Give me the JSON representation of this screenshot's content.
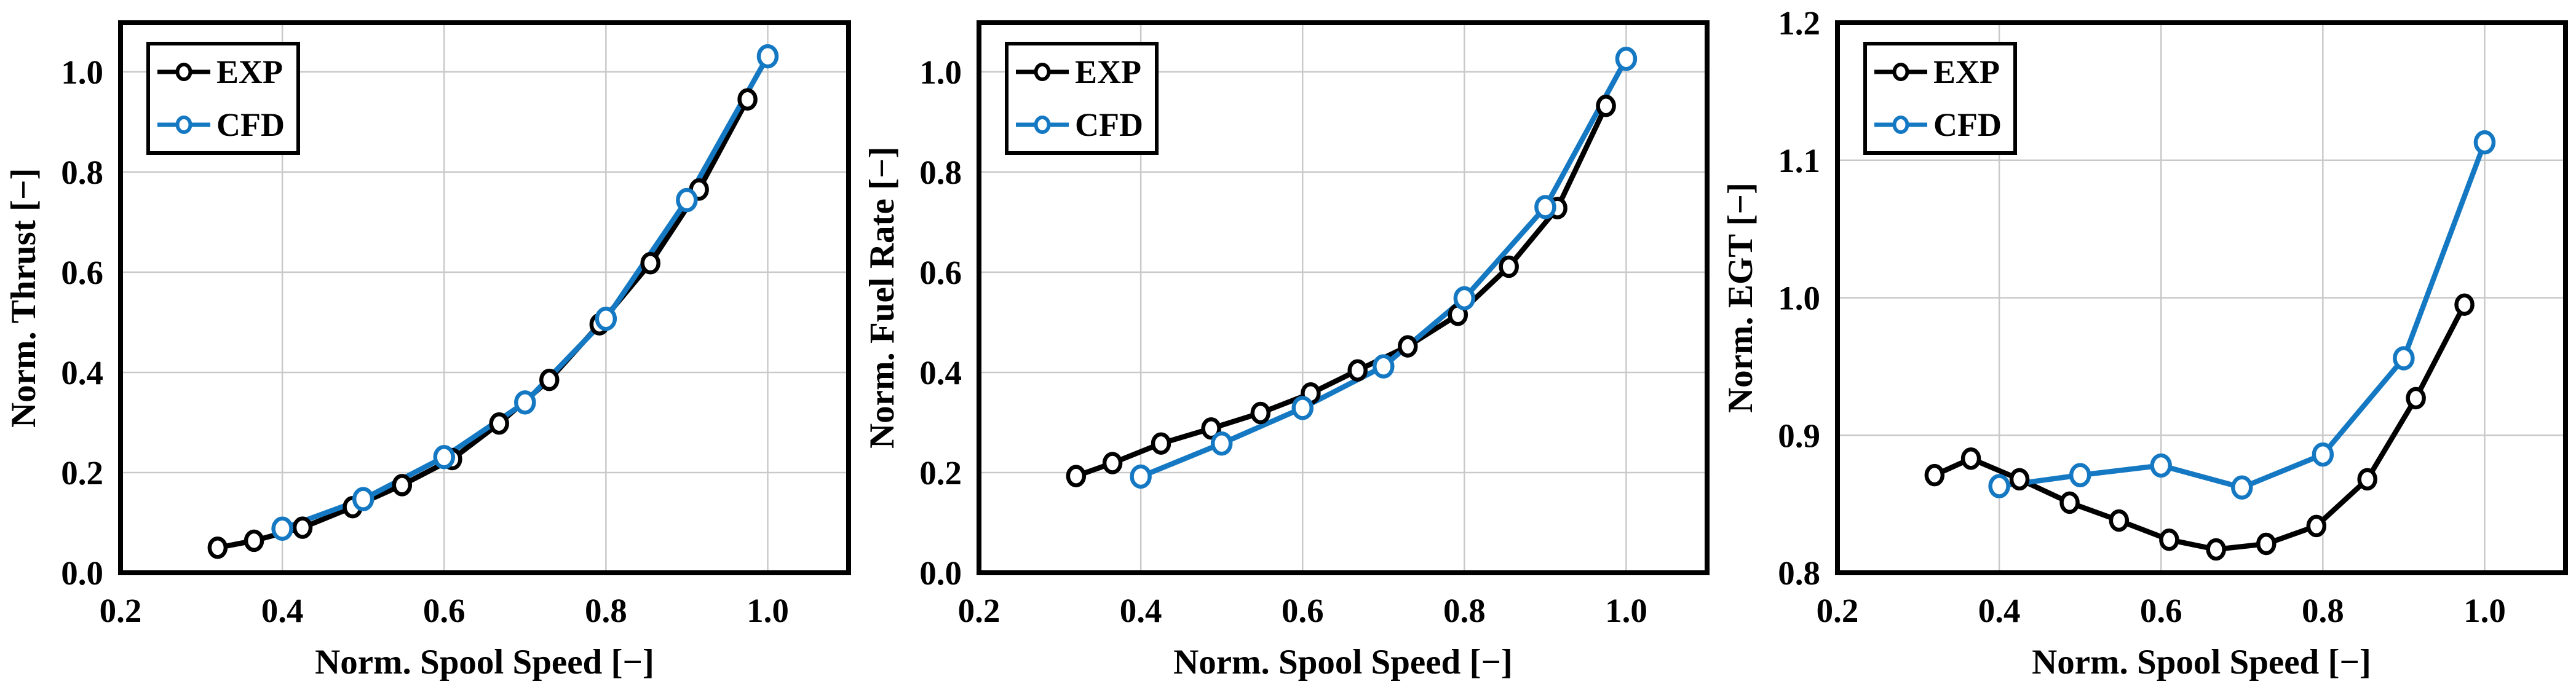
{
  "colors": {
    "exp_black": "#000000",
    "cfd_blue": "#1478c3",
    "gridline": "#c9c9c9",
    "plot_border": "#000000",
    "background": "#ffffff",
    "tick_text": "#000000"
  },
  "chart_data": [
    {
      "type": "line",
      "title": "",
      "xlabel": "Norm. Spool Speed [−]",
      "ylabel": "Norm. Thrust [−]",
      "xlim": [
        0.2,
        1.1
      ],
      "ylim": [
        0.0,
        1.098
      ],
      "grid": true,
      "xtick_labels": [
        "0.2",
        "0.4",
        "0.6",
        "0.8",
        "1.0"
      ],
      "xtick_values": [
        0.2,
        0.4,
        0.6,
        0.8,
        1.0
      ],
      "ytick_labels": [
        "0.0",
        "0.2",
        "0.4",
        "0.6",
        "0.8",
        "1.0"
      ],
      "ytick_values": [
        0.0,
        0.2,
        0.4,
        0.6,
        0.8,
        1.0
      ],
      "legend": {
        "position": "top-left",
        "entries": [
          "EXP",
          "CFD"
        ]
      },
      "series": [
        {
          "name": "EXP",
          "color": "#000000",
          "marker": "open-circle",
          "x": [
            0.32,
            0.365,
            0.425,
            0.487,
            0.548,
            0.61,
            0.668,
            0.73,
            0.792,
            0.855,
            0.915,
            0.975
          ],
          "y": [
            0.05,
            0.064,
            0.09,
            0.131,
            0.175,
            0.227,
            0.298,
            0.385,
            0.496,
            0.618,
            0.765,
            0.945
          ]
        },
        {
          "name": "CFD",
          "color": "#1478c3",
          "marker": "open-circle",
          "x": [
            0.4,
            0.5,
            0.6,
            0.7,
            0.8,
            0.9,
            1.0
          ],
          "y": [
            0.088,
            0.147,
            0.231,
            0.34,
            0.507,
            0.744,
            1.031
          ]
        }
      ]
    },
    {
      "type": "line",
      "title": "",
      "xlabel": "Norm. Spool Speed [−]",
      "ylabel": "Norm. Fuel Rate [−]",
      "xlim": [
        0.2,
        1.1
      ],
      "ylim": [
        0.0,
        1.098
      ],
      "grid": true,
      "xtick_labels": [
        "0.2",
        "0.4",
        "0.6",
        "0.8",
        "1.0"
      ],
      "xtick_values": [
        0.2,
        0.4,
        0.6,
        0.8,
        1.0
      ],
      "ytick_labels": [
        "0.0",
        "0.2",
        "0.4",
        "0.6",
        "0.8",
        "1.0"
      ],
      "ytick_values": [
        0.0,
        0.2,
        0.4,
        0.6,
        0.8,
        1.0
      ],
      "legend": {
        "position": "top-left",
        "entries": [
          "EXP",
          "CFD"
        ]
      },
      "series": [
        {
          "name": "EXP",
          "color": "#000000",
          "marker": "open-circle",
          "x": [
            0.32,
            0.365,
            0.425,
            0.487,
            0.548,
            0.61,
            0.668,
            0.73,
            0.792,
            0.855,
            0.915,
            0.975
          ],
          "y": [
            0.193,
            0.219,
            0.258,
            0.288,
            0.319,
            0.358,
            0.404,
            0.452,
            0.515,
            0.611,
            0.728,
            0.932
          ]
        },
        {
          "name": "CFD",
          "color": "#1478c3",
          "marker": "open-circle",
          "x": [
            0.4,
            0.5,
            0.6,
            0.7,
            0.8,
            0.9,
            1.0
          ],
          "y": [
            0.192,
            0.258,
            0.329,
            0.412,
            0.548,
            0.73,
            1.026
          ]
        }
      ]
    },
    {
      "type": "line",
      "title": "",
      "xlabel": "Norm. Spool Speed [−]",
      "ylabel": "Norm. EGT [−]",
      "xlim": [
        0.2,
        1.1
      ],
      "ylim": [
        0.8,
        1.2
      ],
      "grid": true,
      "xtick_labels": [
        "0.2",
        "0.4",
        "0.6",
        "0.8",
        "1.0"
      ],
      "xtick_values": [
        0.2,
        0.4,
        0.6,
        0.8,
        1.0
      ],
      "ytick_labels": [
        "0.8",
        "0.9",
        "1.0",
        "1.1",
        "1.2"
      ],
      "ytick_values": [
        0.8,
        0.9,
        1.0,
        1.1,
        1.2
      ],
      "legend": {
        "position": "top-left",
        "entries": [
          "EXP",
          "CFD"
        ]
      },
      "series": [
        {
          "name": "EXP",
          "color": "#000000",
          "marker": "open-circle",
          "x": [
            0.32,
            0.365,
            0.425,
            0.487,
            0.548,
            0.61,
            0.668,
            0.73,
            0.792,
            0.855,
            0.915,
            0.975
          ],
          "y": [
            0.871,
            0.883,
            0.868,
            0.851,
            0.838,
            0.824,
            0.817,
            0.821,
            0.834,
            0.868,
            0.927,
            0.995
          ]
        },
        {
          "name": "CFD",
          "color": "#1478c3",
          "marker": "open-circle",
          "x": [
            0.4,
            0.5,
            0.6,
            0.7,
            0.8,
            0.9,
            1.0
          ],
          "y": [
            0.863,
            0.871,
            0.878,
            0.862,
            0.886,
            0.956,
            1.113
          ]
        }
      ]
    }
  ]
}
